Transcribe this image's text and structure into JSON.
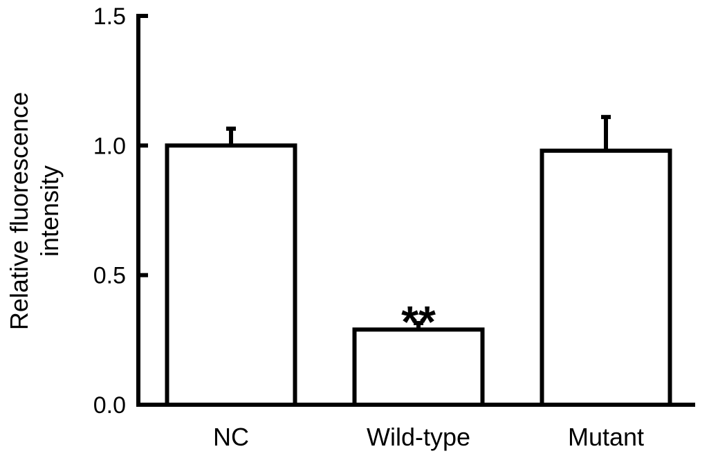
{
  "chart_data": {
    "type": "bar",
    "title": "",
    "xlabel": "",
    "ylabel_lines": [
      "Relative fluorescence",
      "intensity"
    ],
    "categories": [
      "NC",
      "Wild-type",
      "Mutant"
    ],
    "values": [
      1.0,
      0.29,
      0.98
    ],
    "errors": [
      0.065,
      0.025,
      0.13
    ],
    "ylim": [
      0,
      1.5
    ],
    "yticks": [
      "0.0",
      "0.5",
      "1.0",
      "1.5"
    ],
    "annotations": [
      {
        "category": "Wild-type",
        "text": "**"
      }
    ],
    "grid": false,
    "legend": "none",
    "bar_fill": "#ffffff",
    "bar_stroke": "#000000"
  }
}
